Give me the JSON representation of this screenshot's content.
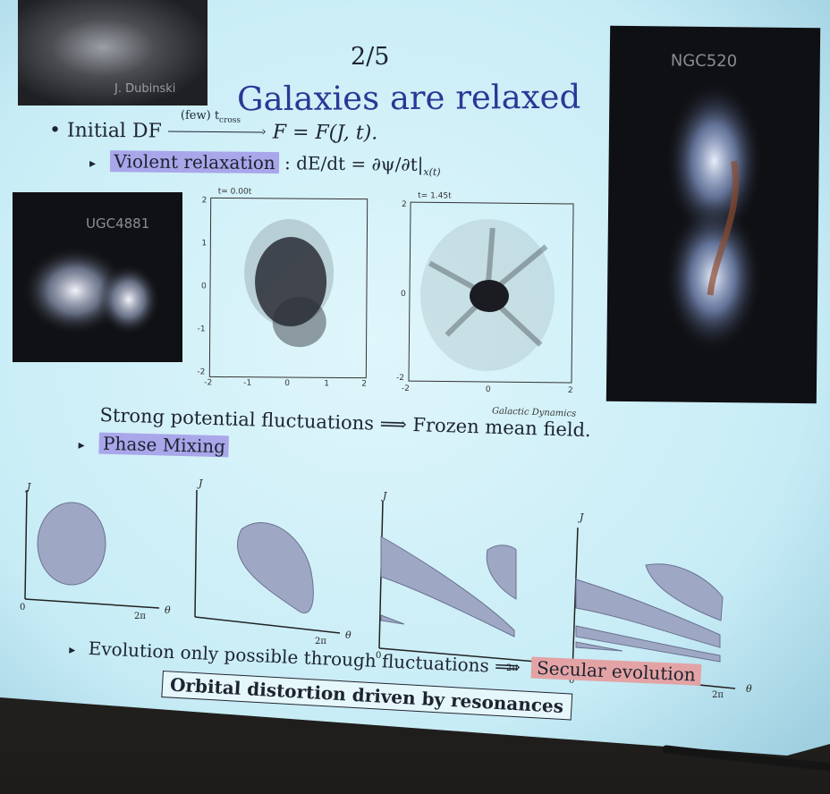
{
  "slide": {
    "page_number": "2/5",
    "title": "Galaxies are relaxed",
    "bullet_initial_df": "• Initial DF",
    "arrow_label": "(few) t",
    "arrow_label_sub": "cross",
    "df_result": "F = F(J, t).",
    "violent_relaxation": "Violent relaxation",
    "violent_eq": ": dE/dt = ∂ψ/∂t|",
    "violent_eq_sub": "x(t)",
    "strong_line": "Strong potential fluctuations ⟹ Frozen mean field.",
    "phase_mixing": "Phase Mixing",
    "evolution_line": "Evolution only possible through fluctuations ⟹",
    "secular": "Secular evolution",
    "boxed": "Orbital distortion driven by resonances",
    "sim_credit": "Galactic Dynamics",
    "sim_time_1": "t= 0.00t",
    "sim_time_2": "t= 1.45t",
    "tri": "▸"
  },
  "photos": {
    "ngc": "NGC520",
    "ugc": "UGC4881",
    "top_credit": "J. Dubinski"
  },
  "axes": {
    "j": "J",
    "theta": "θ",
    "zero": "0",
    "two_pi": "2π"
  },
  "sim_ticks": {
    "x": [
      "-2",
      "-1",
      "0",
      "1",
      "2"
    ],
    "y": [
      "2",
      "1",
      "0",
      "-1",
      "-2"
    ]
  },
  "colors": {
    "slide_bg": "#cfeef7",
    "highlight_blue": "#a9a6ea",
    "highlight_red": "#e3a3a5",
    "blob_fill": "#9ea8c4"
  }
}
